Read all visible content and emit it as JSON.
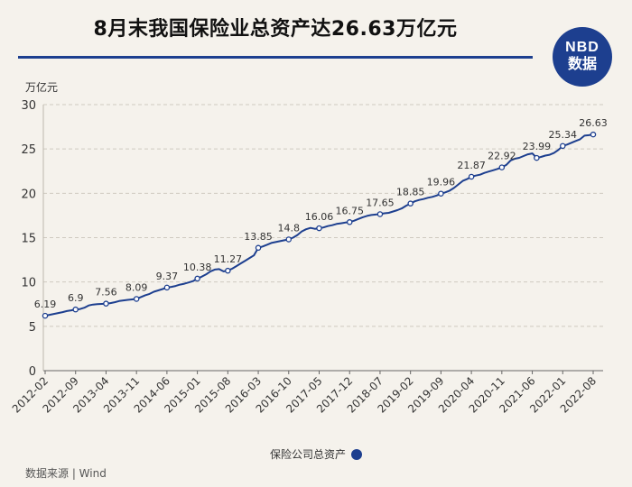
{
  "title": "8月末我国保险业总资产达26.63万亿元",
  "logo": {
    "line1": "NBD",
    "line2": "数据"
  },
  "source": "数据来源 | Wind",
  "colors": {
    "line": "#1d3f8f",
    "grid": "#cfcac0",
    "axis": "#666666"
  },
  "chart_data": {
    "type": "line",
    "ylabel": "万亿元",
    "ylim": [
      0,
      30
    ],
    "yticks": [
      0,
      5,
      10,
      15,
      20,
      25,
      30
    ],
    "grid": true,
    "legend": "bottom",
    "x_labels": [
      "2012-02",
      "2012-09",
      "2013-04",
      "2013-11",
      "2014-06",
      "2015-01",
      "2015-08",
      "2016-03",
      "2016-10",
      "2017-05",
      "2017-12",
      "2018-07",
      "2019-02",
      "2019-09",
      "2020-04",
      "2020-11",
      "2021-06",
      "2022-01",
      "2022-08"
    ],
    "series": [
      {
        "name": "保险公司总资产",
        "points": [
          {
            "x": "2012-02",
            "y": 6.19,
            "label": "6.19"
          },
          {
            "x": "2012-03",
            "y": 6.29
          },
          {
            "x": "2012-04",
            "y": 6.4
          },
          {
            "x": "2012-05",
            "y": 6.5
          },
          {
            "x": "2012-06",
            "y": 6.6
          },
          {
            "x": "2012-07",
            "y": 6.72
          },
          {
            "x": "2012-08",
            "y": 6.8
          },
          {
            "x": "2012-09",
            "y": 6.9,
            "label": "6.9"
          },
          {
            "x": "2012-10",
            "y": 6.95
          },
          {
            "x": "2012-11",
            "y": 7.1
          },
          {
            "x": "2012-12",
            "y": 7.35
          },
          {
            "x": "2013-01",
            "y": 7.45
          },
          {
            "x": "2013-02",
            "y": 7.5
          },
          {
            "x": "2013-03",
            "y": 7.53
          },
          {
            "x": "2013-04",
            "y": 7.56,
            "label": "7.56"
          },
          {
            "x": "2013-05",
            "y": 7.62
          },
          {
            "x": "2013-06",
            "y": 7.72
          },
          {
            "x": "2013-07",
            "y": 7.85
          },
          {
            "x": "2013-08",
            "y": 7.92
          },
          {
            "x": "2013-09",
            "y": 7.98
          },
          {
            "x": "2013-10",
            "y": 8.03
          },
          {
            "x": "2013-11",
            "y": 8.09,
            "label": "8.09"
          },
          {
            "x": "2013-12",
            "y": 8.3
          },
          {
            "x": "2014-01",
            "y": 8.5
          },
          {
            "x": "2014-02",
            "y": 8.65
          },
          {
            "x": "2014-03",
            "y": 8.9
          },
          {
            "x": "2014-04",
            "y": 9.05
          },
          {
            "x": "2014-05",
            "y": 9.2
          },
          {
            "x": "2014-06",
            "y": 9.37,
            "label": "9.37"
          },
          {
            "x": "2014-07",
            "y": 9.45
          },
          {
            "x": "2014-08",
            "y": 9.55
          },
          {
            "x": "2014-09",
            "y": 9.7
          },
          {
            "x": "2014-10",
            "y": 9.8
          },
          {
            "x": "2014-11",
            "y": 9.95
          },
          {
            "x": "2014-12",
            "y": 10.1
          },
          {
            "x": "2015-01",
            "y": 10.38,
            "label": "10.38"
          },
          {
            "x": "2015-02",
            "y": 10.6
          },
          {
            "x": "2015-03",
            "y": 10.85
          },
          {
            "x": "2015-04",
            "y": 11.2
          },
          {
            "x": "2015-05",
            "y": 11.4
          },
          {
            "x": "2015-06",
            "y": 11.45
          },
          {
            "x": "2015-07",
            "y": 11.2
          },
          {
            "x": "2015-08",
            "y": 11.27,
            "label": "11.27"
          },
          {
            "x": "2015-09",
            "y": 11.5
          },
          {
            "x": "2015-10",
            "y": 11.8
          },
          {
            "x": "2015-11",
            "y": 12.1
          },
          {
            "x": "2015-12",
            "y": 12.4
          },
          {
            "x": "2016-01",
            "y": 12.7
          },
          {
            "x": "2016-02",
            "y": 13.0
          },
          {
            "x": "2016-03",
            "y": 13.85,
            "label": "13.85"
          },
          {
            "x": "2016-04",
            "y": 14.0
          },
          {
            "x": "2016-05",
            "y": 14.2
          },
          {
            "x": "2016-06",
            "y": 14.4
          },
          {
            "x": "2016-07",
            "y": 14.5
          },
          {
            "x": "2016-08",
            "y": 14.6
          },
          {
            "x": "2016-09",
            "y": 14.7
          },
          {
            "x": "2016-10",
            "y": 14.8,
            "label": "14.8"
          },
          {
            "x": "2016-11",
            "y": 15.0
          },
          {
            "x": "2016-12",
            "y": 15.3
          },
          {
            "x": "2017-01",
            "y": 15.7
          },
          {
            "x": "2017-02",
            "y": 15.95
          },
          {
            "x": "2017-03",
            "y": 16.1
          },
          {
            "x": "2017-04",
            "y": 16.0
          },
          {
            "x": "2017-05",
            "y": 16.06,
            "label": "16.06"
          },
          {
            "x": "2017-06",
            "y": 16.15
          },
          {
            "x": "2017-07",
            "y": 16.3
          },
          {
            "x": "2017-08",
            "y": 16.4
          },
          {
            "x": "2017-09",
            "y": 16.55
          },
          {
            "x": "2017-10",
            "y": 16.62
          },
          {
            "x": "2017-11",
            "y": 16.7
          },
          {
            "x": "2017-12",
            "y": 16.75,
            "label": "16.75"
          },
          {
            "x": "2018-01",
            "y": 16.9
          },
          {
            "x": "2018-02",
            "y": 17.1
          },
          {
            "x": "2018-03",
            "y": 17.3
          },
          {
            "x": "2018-04",
            "y": 17.45
          },
          {
            "x": "2018-05",
            "y": 17.55
          },
          {
            "x": "2018-06",
            "y": 17.6
          },
          {
            "x": "2018-07",
            "y": 17.65,
            "label": "17.65"
          },
          {
            "x": "2018-08",
            "y": 17.75
          },
          {
            "x": "2018-09",
            "y": 17.8
          },
          {
            "x": "2018-10",
            "y": 17.95
          },
          {
            "x": "2018-11",
            "y": 18.1
          },
          {
            "x": "2018-12",
            "y": 18.3
          },
          {
            "x": "2019-01",
            "y": 18.6
          },
          {
            "x": "2019-02",
            "y": 18.85,
            "label": "18.85"
          },
          {
            "x": "2019-03",
            "y": 19.1
          },
          {
            "x": "2019-04",
            "y": 19.25
          },
          {
            "x": "2019-05",
            "y": 19.35
          },
          {
            "x": "2019-06",
            "y": 19.5
          },
          {
            "x": "2019-07",
            "y": 19.6
          },
          {
            "x": "2019-08",
            "y": 19.75
          },
          {
            "x": "2019-09",
            "y": 19.96,
            "label": "19.96"
          },
          {
            "x": "2019-10",
            "y": 20.1
          },
          {
            "x": "2019-11",
            "y": 20.3
          },
          {
            "x": "2019-12",
            "y": 20.6
          },
          {
            "x": "2020-01",
            "y": 21.0
          },
          {
            "x": "2020-02",
            "y": 21.4
          },
          {
            "x": "2020-03",
            "y": 21.6
          },
          {
            "x": "2020-04",
            "y": 21.87,
            "label": "21.87"
          },
          {
            "x": "2020-05",
            "y": 22.0
          },
          {
            "x": "2020-06",
            "y": 22.1
          },
          {
            "x": "2020-07",
            "y": 22.3
          },
          {
            "x": "2020-08",
            "y": 22.45
          },
          {
            "x": "2020-09",
            "y": 22.6
          },
          {
            "x": "2020-10",
            "y": 22.75
          },
          {
            "x": "2020-11",
            "y": 22.92,
            "label": "22.92"
          },
          {
            "x": "2020-12",
            "y": 23.2
          },
          {
            "x": "2021-01",
            "y": 23.7
          },
          {
            "x": "2021-02",
            "y": 23.9
          },
          {
            "x": "2021-03",
            "y": 24.0
          },
          {
            "x": "2021-04",
            "y": 24.2
          },
          {
            "x": "2021-05",
            "y": 24.4
          },
          {
            "x": "2021-06",
            "y": 24.5
          },
          {
            "x": "2021-07",
            "y": 23.99,
            "label": "23.99"
          },
          {
            "x": "2021-08",
            "y": 24.1
          },
          {
            "x": "2021-09",
            "y": 24.25
          },
          {
            "x": "2021-10",
            "y": 24.35
          },
          {
            "x": "2021-11",
            "y": 24.55
          },
          {
            "x": "2021-12",
            "y": 24.9
          },
          {
            "x": "2022-01",
            "y": 25.34,
            "label": "25.34"
          },
          {
            "x": "2022-02",
            "y": 25.5
          },
          {
            "x": "2022-03",
            "y": 25.7
          },
          {
            "x": "2022-04",
            "y": 25.9
          },
          {
            "x": "2022-05",
            "y": 26.1
          },
          {
            "x": "2022-06",
            "y": 26.5
          },
          {
            "x": "2022-07",
            "y": 26.55
          },
          {
            "x": "2022-08",
            "y": 26.63,
            "label": "26.63"
          }
        ]
      }
    ]
  }
}
